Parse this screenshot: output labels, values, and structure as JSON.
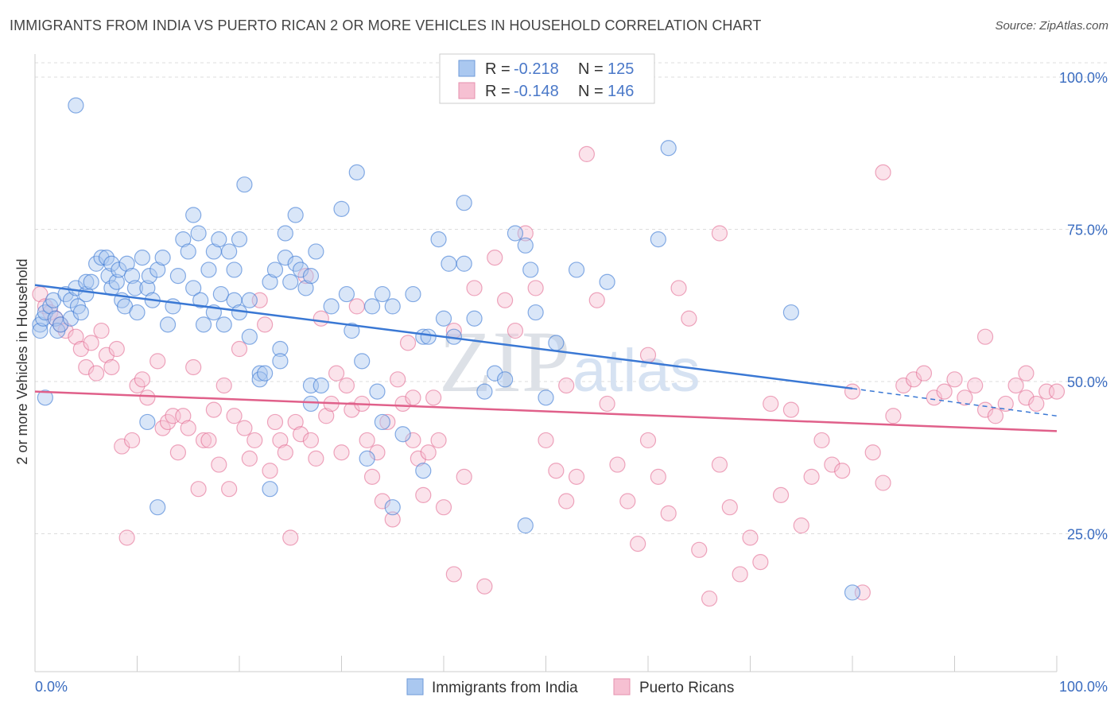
{
  "header": {
    "title": "IMMIGRANTS FROM INDIA VS PUERTO RICAN 2 OR MORE VEHICLES IN HOUSEHOLD CORRELATION CHART",
    "source": "Source: ZipAtlas.com"
  },
  "watermark": {
    "zip": "ZIP",
    "atlas": "atlas"
  },
  "legend": {
    "rows": [
      {
        "r_label": "R =",
        "r_value": "-0.218",
        "n_label": "N =",
        "n_value": "125",
        "color": "#8fb4e8"
      },
      {
        "r_label": "R =",
        "r_value": "-0.148",
        "n_label": "N =",
        "n_value": "146",
        "color": "#f2a8c0"
      }
    ]
  },
  "bottom_legend": {
    "items": [
      {
        "label": "Immigrants from India",
        "color": "#8fb4e8"
      },
      {
        "label": "Puerto Ricans",
        "color": "#f2a8c0"
      }
    ]
  },
  "chart_data": {
    "type": "scatter",
    "ylabel": "2 or more Vehicles in Household",
    "xlim": [
      0,
      100
    ],
    "ylim": [
      0,
      100
    ],
    "x_tick_labels": [
      "0.0%",
      "100.0%"
    ],
    "y_tick_labels": [
      {
        "value": 100,
        "label": "100.0%"
      },
      {
        "value": 75,
        "label": "75.0%"
      },
      {
        "value": 50,
        "label": "50.0%"
      },
      {
        "value": 25,
        "label": "25.0%"
      }
    ],
    "grid": true,
    "legend_position": "top-center",
    "colors": {
      "india": "#3a78d4",
      "india_fill": "#aac8f0",
      "pr": "#e0608a",
      "pr_fill": "#f6c0d2"
    },
    "series": [
      {
        "name": "Immigrants from India",
        "trend": {
          "x0": 0,
          "y0": 63.5,
          "x1": 80,
          "y1": 46.5,
          "dash_x1": 100,
          "dash_y1": 42.0
        },
        "points": [
          [
            0.5,
            57
          ],
          [
            0.5,
            56
          ],
          [
            0.8,
            58
          ],
          [
            1,
            59
          ],
          [
            1.5,
            60
          ],
          [
            1.8,
            61
          ],
          [
            2,
            58
          ],
          [
            2.2,
            56
          ],
          [
            2.5,
            57
          ],
          [
            3,
            62
          ],
          [
            3.5,
            61
          ],
          [
            3.5,
            58
          ],
          [
            4,
            63
          ],
          [
            4.2,
            60
          ],
          [
            4.5,
            59
          ],
          [
            5,
            62
          ],
          [
            5,
            64
          ],
          [
            5.5,
            64
          ],
          [
            6,
            67
          ],
          [
            6.5,
            68
          ],
          [
            7,
            68
          ],
          [
            7.2,
            65
          ],
          [
            7.5,
            63
          ],
          [
            7.5,
            67
          ],
          [
            8,
            64
          ],
          [
            8.2,
            66
          ],
          [
            8.5,
            61
          ],
          [
            8.8,
            60
          ],
          [
            9,
            67
          ],
          [
            9.5,
            65
          ],
          [
            9.8,
            63
          ],
          [
            10,
            59
          ],
          [
            10.5,
            68
          ],
          [
            11,
            63
          ],
          [
            11.2,
            65
          ],
          [
            11.5,
            61
          ],
          [
            12,
            66
          ],
          [
            12.5,
            68
          ],
          [
            13,
            57
          ],
          [
            13.5,
            60
          ],
          [
            14,
            65
          ],
          [
            14.5,
            71
          ],
          [
            15,
            69
          ],
          [
            15.5,
            75
          ],
          [
            15.5,
            63
          ],
          [
            16,
            72
          ],
          [
            16.2,
            61
          ],
          [
            16.5,
            57
          ],
          [
            17,
            66
          ],
          [
            17.5,
            69
          ],
          [
            17.5,
            59
          ],
          [
            18,
            71
          ],
          [
            18.2,
            62
          ],
          [
            18.5,
            57
          ],
          [
            19,
            69
          ],
          [
            19.5,
            61
          ],
          [
            19.5,
            66
          ],
          [
            20,
            59
          ],
          [
            20.5,
            80
          ],
          [
            21,
            55
          ],
          [
            21,
            61
          ],
          [
            22,
            49
          ],
          [
            22,
            48
          ],
          [
            22.5,
            49
          ],
          [
            23,
            64
          ],
          [
            23.5,
            66
          ],
          [
            24,
            53
          ],
          [
            24,
            51
          ],
          [
            24.5,
            68
          ],
          [
            24.5,
            72
          ],
          [
            25,
            64
          ],
          [
            25.5,
            67
          ],
          [
            25.5,
            75
          ],
          [
            26,
            66
          ],
          [
            26.5,
            63
          ],
          [
            27,
            65
          ],
          [
            27,
            44
          ],
          [
            27,
            47
          ],
          [
            27.5,
            69
          ],
          [
            28,
            47
          ],
          [
            29,
            60
          ],
          [
            30,
            76
          ],
          [
            30.5,
            62
          ],
          [
            31,
            56
          ],
          [
            31.5,
            82
          ],
          [
            32,
            51
          ],
          [
            32.5,
            35
          ],
          [
            33,
            60
          ],
          [
            33.5,
            46
          ],
          [
            34,
            41
          ],
          [
            34,
            62
          ],
          [
            35,
            27
          ],
          [
            36,
            39
          ],
          [
            37,
            62
          ],
          [
            38,
            55
          ],
          [
            38.5,
            55
          ],
          [
            39.5,
            71
          ],
          [
            40,
            58
          ],
          [
            40.5,
            67
          ],
          [
            41,
            55
          ],
          [
            42,
            67
          ],
          [
            42,
            77
          ],
          [
            43,
            58
          ],
          [
            45,
            49
          ],
          [
            46,
            48
          ],
          [
            47,
            72
          ],
          [
            48,
            70
          ],
          [
            48.5,
            66
          ],
          [
            49,
            59
          ],
          [
            50,
            45
          ],
          [
            51,
            54
          ],
          [
            53,
            66
          ],
          [
            56,
            64
          ],
          [
            61,
            71
          ],
          [
            62,
            86
          ],
          [
            74,
            59
          ],
          [
            80,
            13
          ],
          [
            1,
            45
          ],
          [
            4,
            93
          ],
          [
            11,
            41
          ],
          [
            12,
            27
          ],
          [
            44,
            46
          ],
          [
            20,
            71
          ],
          [
            38,
            33
          ],
          [
            48,
            24
          ],
          [
            35,
            60
          ],
          [
            23,
            30
          ]
        ]
      },
      {
        "name": "Puerto Ricans",
        "trend": {
          "x0": 0,
          "y0": 46.0,
          "x1": 100,
          "y1": 39.5
        },
        "points": [
          [
            0.5,
            62
          ],
          [
            1,
            60
          ],
          [
            1.5,
            59
          ],
          [
            2,
            58
          ],
          [
            2.5,
            57
          ],
          [
            3,
            56
          ],
          [
            4,
            55
          ],
          [
            4.5,
            53
          ],
          [
            5,
            50
          ],
          [
            5.5,
            54
          ],
          [
            6,
            49
          ],
          [
            6.5,
            56
          ],
          [
            7,
            52
          ],
          [
            7.5,
            50
          ],
          [
            8,
            53
          ],
          [
            8.5,
            37
          ],
          [
            9,
            22
          ],
          [
            9.5,
            38
          ],
          [
            10,
            47
          ],
          [
            10.5,
            48
          ],
          [
            11,
            45
          ],
          [
            12,
            51
          ],
          [
            12.5,
            40
          ],
          [
            13,
            41
          ],
          [
            13.5,
            42
          ],
          [
            14,
            36
          ],
          [
            14.5,
            42
          ],
          [
            15,
            40
          ],
          [
            15.5,
            50
          ],
          [
            16,
            30
          ],
          [
            16.5,
            38
          ],
          [
            17,
            38
          ],
          [
            17.5,
            43
          ],
          [
            18,
            34
          ],
          [
            18.5,
            47
          ],
          [
            19,
            30
          ],
          [
            19.5,
            42
          ],
          [
            20,
            53
          ],
          [
            20.5,
            40
          ],
          [
            21,
            35
          ],
          [
            21.5,
            38
          ],
          [
            22,
            61
          ],
          [
            22.5,
            57
          ],
          [
            23,
            33
          ],
          [
            23.5,
            41
          ],
          [
            24,
            38
          ],
          [
            24.5,
            36
          ],
          [
            25,
            22
          ],
          [
            25.5,
            41
          ],
          [
            26,
            39
          ],
          [
            26.5,
            65
          ],
          [
            27,
            38
          ],
          [
            27.5,
            35
          ],
          [
            28,
            58
          ],
          [
            28.5,
            42
          ],
          [
            29,
            44
          ],
          [
            29.5,
            49
          ],
          [
            30,
            36
          ],
          [
            30.5,
            47
          ],
          [
            31,
            43
          ],
          [
            31.5,
            60
          ],
          [
            32,
            44
          ],
          [
            32.5,
            38
          ],
          [
            33,
            32
          ],
          [
            33.5,
            36
          ],
          [
            34,
            28
          ],
          [
            34.5,
            41
          ],
          [
            35,
            25
          ],
          [
            35.5,
            48
          ],
          [
            36,
            44
          ],
          [
            36.5,
            54
          ],
          [
            37,
            38
          ],
          [
            37.5,
            35
          ],
          [
            38,
            29
          ],
          [
            38.5,
            36
          ],
          [
            39,
            45
          ],
          [
            39.5,
            38
          ],
          [
            40,
            27
          ],
          [
            41,
            16
          ],
          [
            42,
            32
          ],
          [
            43,
            63
          ],
          [
            44,
            14
          ],
          [
            45,
            68
          ],
          [
            46,
            61
          ],
          [
            47,
            56
          ],
          [
            48,
            72
          ],
          [
            49,
            63
          ],
          [
            50,
            38
          ],
          [
            51,
            33
          ],
          [
            52,
            28
          ],
          [
            53,
            32
          ],
          [
            54,
            85
          ],
          [
            55,
            61
          ],
          [
            56,
            44
          ],
          [
            57,
            34
          ],
          [
            58,
            28
          ],
          [
            59,
            21
          ],
          [
            60,
            38
          ],
          [
            61,
            32
          ],
          [
            62,
            26
          ],
          [
            63,
            63
          ],
          [
            64,
            58
          ],
          [
            65,
            20
          ],
          [
            66,
            12
          ],
          [
            67,
            34
          ],
          [
            68,
            27
          ],
          [
            69,
            16
          ],
          [
            70,
            22
          ],
          [
            71,
            18
          ],
          [
            72,
            44
          ],
          [
            73,
            29
          ],
          [
            74,
            43
          ],
          [
            75,
            24
          ],
          [
            76,
            32
          ],
          [
            77,
            38
          ],
          [
            78,
            34
          ],
          [
            79,
            33
          ],
          [
            80,
            46
          ],
          [
            81,
            13
          ],
          [
            82,
            36
          ],
          [
            83,
            31
          ],
          [
            84,
            42
          ],
          [
            85,
            47
          ],
          [
            86,
            48
          ],
          [
            87,
            49
          ],
          [
            88,
            45
          ],
          [
            89,
            46
          ],
          [
            90,
            48
          ],
          [
            91,
            45
          ],
          [
            92,
            47
          ],
          [
            93,
            43
          ],
          [
            94,
            42
          ],
          [
            95,
            44
          ],
          [
            96,
            47
          ],
          [
            97,
            45
          ],
          [
            98,
            44
          ],
          [
            99,
            46
          ],
          [
            100,
            46
          ],
          [
            83,
            82
          ],
          [
            67,
            72
          ],
          [
            41,
            56
          ],
          [
            37,
            45
          ],
          [
            52,
            47
          ],
          [
            60,
            52
          ],
          [
            93,
            55
          ],
          [
            97,
            49
          ]
        ]
      }
    ]
  }
}
